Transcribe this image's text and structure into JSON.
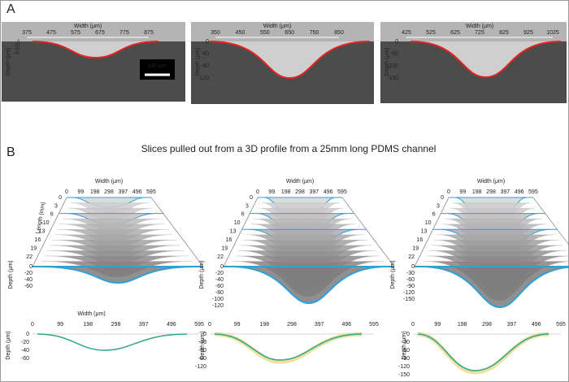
{
  "panel_a": {
    "label": "A",
    "scale_bar": "100 μm",
    "images": [
      {
        "x_title": "Width (μm)",
        "x_ticks": [
          375,
          475,
          575,
          675,
          775,
          875
        ],
        "y_title": "Depth (μm)",
        "y_ticks": [
          0,
          -20,
          -40,
          -60
        ]
      },
      {
        "x_title": "Width (μm)",
        "x_ticks": [
          350,
          450,
          550,
          650,
          750,
          850
        ],
        "y_title": "Depth (μm)",
        "y_ticks": [
          0,
          -40,
          -80,
          -120
        ]
      },
      {
        "x_title": "Width (μm)",
        "x_ticks": [
          425,
          525,
          625,
          725,
          825,
          925,
          1025
        ],
        "y_title": "Depth (μm)",
        "y_ticks": [
          0,
          -50,
          -100,
          -150
        ]
      }
    ]
  },
  "panel_b": {
    "label": "B",
    "title": "Slices pulled out from a 3D profile from a 25mm long PDMS channel",
    "profiles_3d": [
      {
        "x_title": "Width (μm)",
        "x_ticks": [
          0,
          99,
          198,
          298,
          397,
          496,
          595
        ],
        "length_title": "Length (mm)",
        "length_ticks": [
          0,
          3,
          6,
          10,
          13,
          16,
          19,
          22
        ],
        "depth_title": "Depth (μm)",
        "depth_ticks": [
          0,
          -20,
          -40,
          -60
        ]
      },
      {
        "x_title": "Width (μm)",
        "x_ticks": [
          0,
          99,
          198,
          298,
          397,
          496,
          595
        ],
        "length_ticks": [
          0,
          3,
          6,
          10,
          13,
          16,
          19,
          22
        ],
        "depth_title": "Depth (μm)",
        "depth_ticks": [
          0,
          -20,
          -40,
          -60,
          -80,
          -100,
          -120
        ]
      },
      {
        "x_title": "Width (μm)",
        "x_ticks": [
          0,
          99,
          198,
          298,
          397,
          496,
          595
        ],
        "length_ticks": [
          0,
          3,
          6,
          10,
          13,
          16,
          19,
          22
        ],
        "depth_title": "Depth (μm)",
        "depth_ticks": [
          0,
          -30,
          -60,
          -90,
          -120,
          -150
        ]
      }
    ],
    "profiles_2d": [
      {
        "x_title": "Width (μm)",
        "x_ticks": [
          0,
          99,
          198,
          298,
          397,
          496,
          595
        ],
        "y_title": "Depth (μm)",
        "y_ticks": [
          0,
          -20,
          -40,
          -60
        ]
      },
      {
        "x_ticks": [
          0,
          99,
          198,
          298,
          397,
          496,
          595
        ],
        "y_title": "Depth (μm)",
        "y_ticks": [
          0,
          -30,
          -60,
          -90,
          -120
        ]
      },
      {
        "x_ticks": [
          0,
          99,
          198,
          298,
          397,
          496,
          595
        ],
        "y_title": "Depth (μm)",
        "y_ticks": [
          0,
          -30,
          -60,
          -90,
          -120,
          -150
        ]
      }
    ]
  }
}
